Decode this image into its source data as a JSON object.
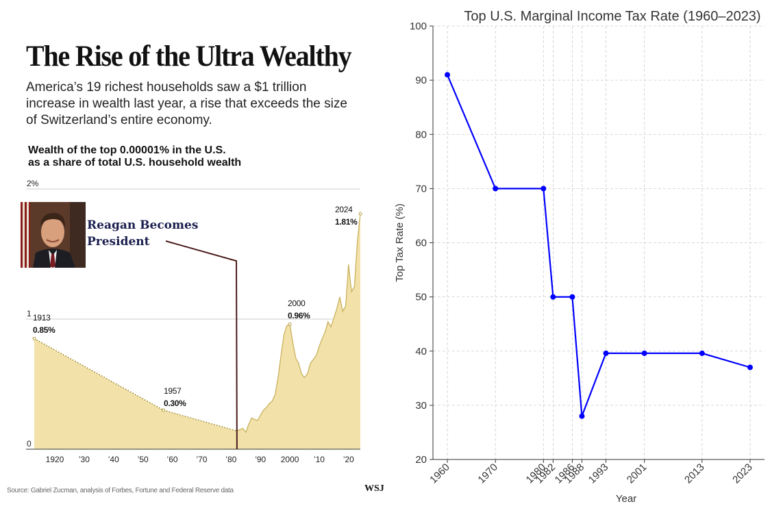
{
  "left": {
    "headline": "The Rise of the Ultra Wealthy",
    "dek": "America’s 19 richest households saw a $1 trillion increase in wealth last year, a rise that exceeds the size of Switzerland’s entire economy.",
    "chart_title_line1": "Wealth of the top 0.00001% in the U.S.",
    "chart_title_line2": "as a share of total U.S. household wealth",
    "annotation_line1": "Reagan Becomes",
    "annotation_line2": "President",
    "source": "Source: Gabriel Zucman, analysis of Forbes, Fortune and Federal Reserve data",
    "brand": "WSJ"
  },
  "chart_data": [
    {
      "type": "area",
      "title": "Wealth of the top 0.00001% in the U.S. as a share of total U.S. household wealth",
      "xlim": [
        1913,
        2024
      ],
      "ylim": [
        0,
        2
      ],
      "y_ticks": [
        0,
        1,
        2
      ],
      "y_tick_labels": [
        "0",
        "1",
        "2%"
      ],
      "x_ticks": [
        1920,
        1930,
        1940,
        1950,
        1960,
        1970,
        1980,
        1990,
        2000,
        2010,
        2020
      ],
      "x_tick_labels": [
        "1920",
        "’30",
        "’40",
        "’50",
        "’60",
        "’70",
        "’80",
        "’90",
        "2000",
        "’10",
        "’20"
      ],
      "grid": "horizontal",
      "colors": {
        "fill": "#f2e2a9",
        "line": "#c9b15e",
        "marker_line": "#4a1a1a",
        "gridline": "#bbbbbb"
      },
      "series": [
        {
          "values": [
            [
              1913,
              0.85
            ],
            [
              1957,
              0.3
            ],
            [
              1982,
              0.14
            ],
            [
              1983,
              0.15
            ],
            [
              1984,
              0.16
            ],
            [
              1985,
              0.13
            ],
            [
              1986,
              0.19
            ],
            [
              1987,
              0.24
            ],
            [
              1988,
              0.23
            ],
            [
              1989,
              0.22
            ],
            [
              1990,
              0.26
            ],
            [
              1991,
              0.3
            ],
            [
              1992,
              0.32
            ],
            [
              1993,
              0.35
            ],
            [
              1994,
              0.37
            ],
            [
              1995,
              0.42
            ],
            [
              1996,
              0.55
            ],
            [
              1997,
              0.72
            ],
            [
              1998,
              0.88
            ],
            [
              1999,
              0.95
            ],
            [
              2000,
              0.96
            ],
            [
              2001,
              0.82
            ],
            [
              2002,
              0.7
            ],
            [
              2003,
              0.66
            ],
            [
              2004,
              0.58
            ],
            [
              2005,
              0.55
            ],
            [
              2006,
              0.58
            ],
            [
              2007,
              0.66
            ],
            [
              2008,
              0.69
            ],
            [
              2009,
              0.72
            ],
            [
              2010,
              0.79
            ],
            [
              2011,
              0.85
            ],
            [
              2012,
              0.9
            ],
            [
              2013,
              0.98
            ],
            [
              2014,
              0.94
            ],
            [
              2015,
              1.01
            ],
            [
              2016,
              1.08
            ],
            [
              2017,
              1.17
            ],
            [
              2018,
              1.06
            ],
            [
              2019,
              1.1
            ],
            [
              2020,
              1.42
            ],
            [
              2021,
              1.21
            ],
            [
              2022,
              1.25
            ],
            [
              2023,
              1.6
            ],
            [
              2024,
              1.81
            ]
          ]
        }
      ],
      "dotted_segments": [
        [
          1913,
          1982
        ]
      ],
      "annotations": [
        {
          "year": "1913",
          "value": "0.85%",
          "x": 1913,
          "y": 0.85
        },
        {
          "year": "1957",
          "value": "0.30%",
          "x": 1957,
          "y": 0.3
        },
        {
          "year": "2000",
          "value": "0.96%",
          "x": 2000,
          "y": 0.96
        },
        {
          "year": "2024",
          "value": "1.81%",
          "x": 2024,
          "y": 1.81
        }
      ],
      "event_marker": {
        "x": 1982,
        "label": "Reagan Becomes President"
      }
    },
    {
      "type": "line",
      "title": "Top U.S. Marginal Income Tax Rate (1960–2023)",
      "xlabel": "Year",
      "ylabel": "Top Tax Rate (%)",
      "ylim": [
        20,
        100
      ],
      "y_ticks": [
        20,
        30,
        40,
        50,
        60,
        70,
        80,
        90,
        100
      ],
      "grid": true,
      "color": "#0000ff",
      "x": [
        1960,
        1970,
        1980,
        1982,
        1986,
        1988,
        1993,
        2001,
        2013,
        2023
      ],
      "x_tick_labels": [
        "1960",
        "1970",
        "1980",
        "1982",
        "1986",
        "1988",
        "1993",
        "2001",
        "2013",
        "2023"
      ],
      "series": [
        {
          "values": [
            91,
            70,
            70,
            50,
            50,
            28,
            39.6,
            39.6,
            39.6,
            37
          ]
        }
      ]
    }
  ]
}
